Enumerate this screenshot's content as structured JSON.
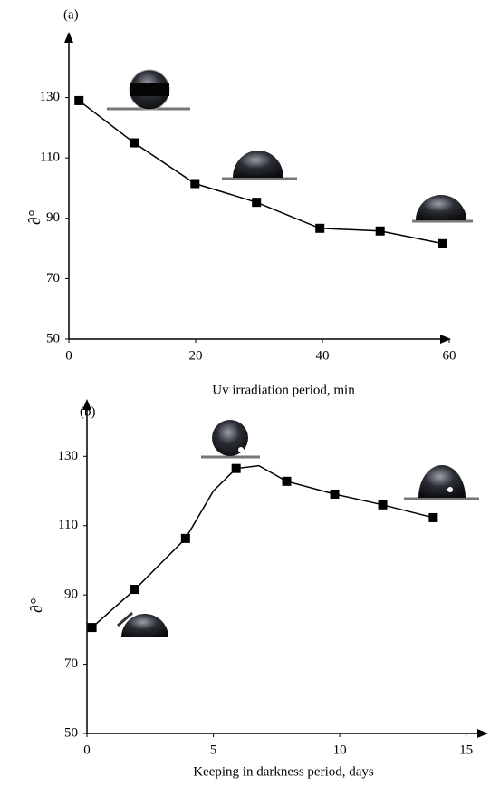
{
  "chart_data": [
    {
      "type": "line",
      "panel_label": "(a)",
      "xlabel": "Uv irradiation period, min",
      "ylabel": "∂°",
      "xlim": [
        0,
        60
      ],
      "ylim": [
        50,
        150
      ],
      "xticks": [
        0,
        20,
        40,
        60
      ],
      "yticks": [
        50,
        70,
        90,
        110,
        130
      ],
      "series": [
        {
          "color": "#000000",
          "marker": "square",
          "line": true,
          "x": [
            1.6,
            10.3,
            19.9,
            29.6,
            39.6,
            49.1,
            59
          ],
          "values": [
            129,
            115,
            101.5,
            95.3,
            86.7,
            85.8,
            81.6
          ]
        }
      ]
    },
    {
      "type": "line",
      "panel_label": "(b)",
      "xlabel": "Keeping in darkness period, days",
      "ylabel": "∂°",
      "xlim": [
        0,
        15.8
      ],
      "ylim": [
        50,
        145
      ],
      "xticks": [
        0,
        5,
        10,
        15
      ],
      "yticks": [
        50,
        70,
        90,
        110,
        130
      ],
      "series": [
        {
          "color": "#000000",
          "marker": "none",
          "line": true,
          "x": [
            0.2,
            1.9,
            3.9,
            5,
            5.9,
            6.8,
            7.9,
            9.8,
            11.7,
            13.7
          ],
          "values": [
            80.6,
            91.6,
            106.3,
            120,
            126.5,
            127.3,
            122.8,
            119.1,
            116,
            112.3
          ]
        },
        {
          "color": "#000000",
          "marker": "square",
          "line": false,
          "x": [
            0.2,
            1.9,
            3.9,
            5.9,
            7.9,
            9.8,
            11.7,
            13.7
          ],
          "values": [
            80.6,
            91.6,
            106.3,
            126.5,
            122.8,
            119.1,
            116,
            112.3
          ]
        }
      ]
    }
  ]
}
